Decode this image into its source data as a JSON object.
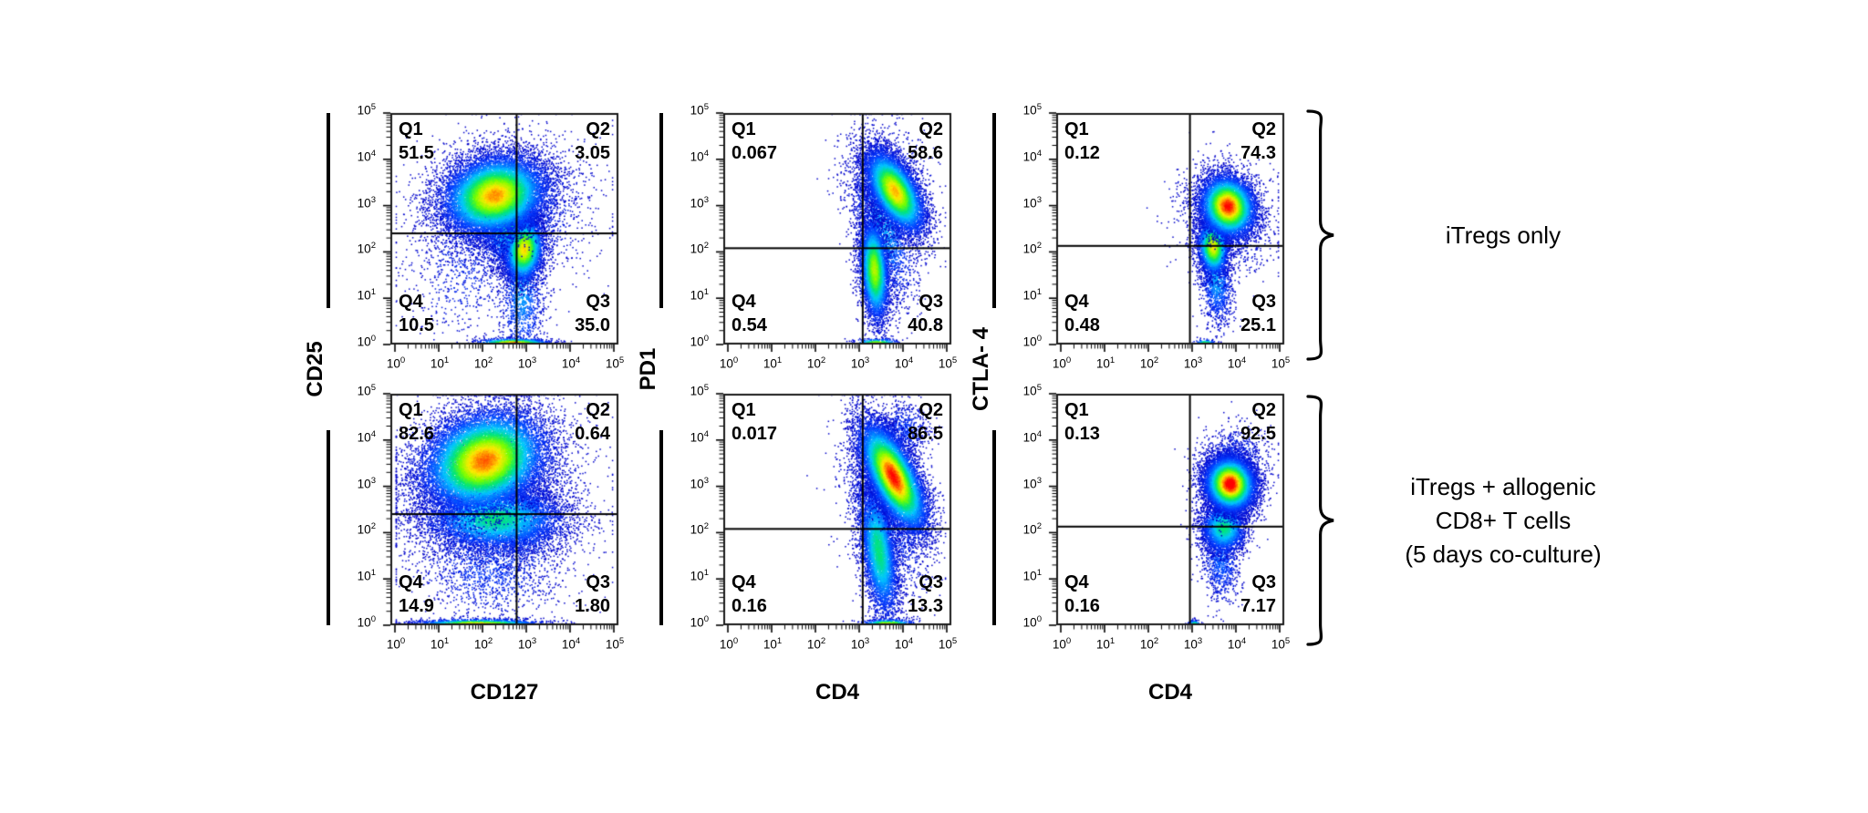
{
  "figure": {
    "title": "",
    "rows": [
      {
        "label_lines": [
          "iTregs only"
        ]
      },
      {
        "label_lines": [
          "iTregs + allogenic",
          "CD8+ T cells",
          "(5 days co-culture)"
        ]
      }
    ],
    "columns": [
      {
        "y_label": "CD25",
        "x_label": "CD127"
      },
      {
        "y_label": "PD1",
        "x_label": "CD4"
      },
      {
        "y_label": "CTLA- 4",
        "x_label": "CD4"
      }
    ],
    "tick_base": "10",
    "tick_exponents": [
      "0",
      "1",
      "2",
      "3",
      "4",
      "5"
    ]
  },
  "chart_data": {
    "type": "scatter",
    "subtype": "flow-cytometry-pseudocolor-dot-plot",
    "x_scale": "log10",
    "y_scale": "log10",
    "x_range_decades": [
      0,
      5
    ],
    "y_range_decades": [
      0,
      5
    ],
    "grid": false,
    "legend": false,
    "panels": [
      {
        "id": "cd25-vs-cd127-itregs-only",
        "row": 0,
        "col": 0,
        "xlabel": "CD127",
        "ylabel": "CD25",
        "condition": "iTregs only",
        "quadrants": {
          "q1": {
            "label": "Q1",
            "value": "51.5"
          },
          "q2": {
            "label": "Q2",
            "value": "3.05"
          },
          "q3": {
            "label": "Q3",
            "value": "35.0"
          },
          "q4": {
            "label": "Q4",
            "value": "10.5"
          }
        },
        "gate": {
          "x_log": 2.78,
          "y_log": 2.4
        },
        "populations": [
          {
            "n": 2600,
            "cx": 2.55,
            "cy": 2.9,
            "sx": 0.95,
            "sy": 0.75,
            "rot": 10,
            "core": 0.18
          },
          {
            "n": 600,
            "cx": 1.6,
            "cy": 1.6,
            "sx": 0.7,
            "sy": 0.8,
            "rot": 0,
            "core": 0.1
          },
          {
            "n": 1500,
            "cx": 2.9,
            "cy": 1.2,
            "sx": 0.25,
            "sy": 0.8,
            "rot": 0,
            "core": 0.3
          },
          {
            "n": 3000,
            "cx": 2.62,
            "cy": 2.55,
            "sx": 0.32,
            "sy": 0.45,
            "rot": 0,
            "core": 0.45
          },
          {
            "n": 4200,
            "cx": 2.95,
            "cy": 2.05,
            "sx": 0.22,
            "sy": 0.35,
            "rot": -8,
            "core": 0.82
          },
          {
            "n": 13000,
            "cx": 2.28,
            "cy": 3.22,
            "sx": 0.6,
            "sy": 0.42,
            "rot": 12,
            "core": 0.88
          },
          {
            "n": 1100,
            "cx": 2.7,
            "cy": 0.03,
            "sx": 0.42,
            "sy": 0.05,
            "rot": 0,
            "core": 0.95
          }
        ]
      },
      {
        "id": "pd1-vs-cd4-itregs-only",
        "row": 0,
        "col": 1,
        "xlabel": "CD4",
        "ylabel": "PD1",
        "condition": "iTregs only",
        "quadrants": {
          "q1": {
            "label": "Q1",
            "value": "0.067"
          },
          "q2": {
            "label": "Q2",
            "value": "58.6"
          },
          "q3": {
            "label": "Q3",
            "value": "40.8"
          },
          "q4": {
            "label": "Q4",
            "value": "0.54"
          }
        },
        "gate": {
          "x_log": 3.08,
          "y_log": 2.08
        },
        "populations": [
          {
            "n": 900,
            "cx": 3.6,
            "cy": 3.6,
            "sx": 0.5,
            "sy": 0.6,
            "rot": 20,
            "core": 0.12
          },
          {
            "n": 2400,
            "cx": 3.55,
            "cy": 2.5,
            "sx": 0.3,
            "sy": 0.8,
            "rot": 15,
            "core": 0.3
          },
          {
            "n": 5200,
            "cx": 3.35,
            "cy": 1.6,
            "sx": 0.16,
            "sy": 0.55,
            "rot": 4,
            "core": 0.72
          },
          {
            "n": 8500,
            "cx": 3.82,
            "cy": 3.3,
            "sx": 0.25,
            "sy": 0.5,
            "rot": 32,
            "core": 0.85
          },
          {
            "n": 350,
            "cx": 3.4,
            "cy": 0.03,
            "sx": 0.25,
            "sy": 0.05,
            "rot": 0,
            "core": 0.75
          }
        ]
      },
      {
        "id": "ctla4-vs-cd4-itregs-only",
        "row": 0,
        "col": 2,
        "xlabel": "CD4",
        "ylabel": "CTLA- 4",
        "condition": "iTregs only",
        "quadrants": {
          "q1": {
            "label": "Q1",
            "value": "0.12"
          },
          "q2": {
            "label": "Q2",
            "value": "74.3"
          },
          "q3": {
            "label": "Q3",
            "value": "25.1"
          },
          "q4": {
            "label": "Q4",
            "value": "0.48"
          }
        },
        "gate": {
          "x_log": 2.95,
          "y_log": 2.13
        },
        "populations": [
          {
            "n": 1300,
            "cx": 3.75,
            "cy": 2.7,
            "sx": 0.5,
            "sy": 0.6,
            "rot": 25,
            "core": 0.15
          },
          {
            "n": 1400,
            "cx": 3.55,
            "cy": 1.4,
            "sx": 0.18,
            "sy": 0.5,
            "rot": 5,
            "core": 0.3
          },
          {
            "n": 3200,
            "cx": 3.48,
            "cy": 2.1,
            "sx": 0.17,
            "sy": 0.3,
            "rot": 5,
            "core": 0.8
          },
          {
            "n": 8000,
            "cx": 3.82,
            "cy": 2.98,
            "sx": 0.3,
            "sy": 0.34,
            "rot": 33,
            "core": 1.0
          },
          {
            "n": 150,
            "cx": 3.3,
            "cy": 0.03,
            "sx": 0.12,
            "sy": 0.04,
            "rot": 0,
            "core": 0.6
          }
        ]
      },
      {
        "id": "cd25-vs-cd127-coculture",
        "row": 1,
        "col": 0,
        "xlabel": "CD127",
        "ylabel": "CD25",
        "condition": "iTregs + allogenic CD8+ T cells (5 days co-culture)",
        "quadrants": {
          "q1": {
            "label": "Q1",
            "value": "82.6"
          },
          "q2": {
            "label": "Q2",
            "value": "0.64"
          },
          "q3": {
            "label": "Q3",
            "value": "1.80"
          },
          "q4": {
            "label": "Q4",
            "value": "14.9"
          }
        },
        "gate": {
          "x_log": 2.78,
          "y_log": 2.4
        },
        "populations": [
          {
            "n": 3000,
            "cx": 2.1,
            "cy": 2.95,
            "sx": 1.05,
            "sy": 0.85,
            "rot": 10,
            "core": 0.2
          },
          {
            "n": 1500,
            "cx": 2.2,
            "cy": 1.3,
            "sx": 0.85,
            "sy": 0.6,
            "rot": 0,
            "core": 0.15
          },
          {
            "n": 800,
            "cx": 3.0,
            "cy": 2.2,
            "sx": 0.35,
            "sy": 0.5,
            "rot": 0,
            "core": 0.25
          },
          {
            "n": 6500,
            "cx": 2.3,
            "cy": 2.3,
            "sx": 0.8,
            "sy": 0.35,
            "rot": 0,
            "core": 0.5
          },
          {
            "n": 15000,
            "cx": 2.05,
            "cy": 3.55,
            "sx": 0.72,
            "sy": 0.52,
            "rot": 18,
            "core": 0.92
          },
          {
            "n": 2000,
            "cx": 1.9,
            "cy": 0.03,
            "sx": 0.72,
            "sy": 0.05,
            "rot": 0,
            "core": 0.85
          }
        ]
      },
      {
        "id": "pd1-vs-cd4-coculture",
        "row": 1,
        "col": 1,
        "xlabel": "CD4",
        "ylabel": "PD1",
        "condition": "iTregs + allogenic CD8+ T cells (5 days co-culture)",
        "quadrants": {
          "q1": {
            "label": "Q1",
            "value": "0.017"
          },
          "q2": {
            "label": "Q2",
            "value": "86.5"
          },
          "q3": {
            "label": "Q3",
            "value": "13.3"
          },
          "q4": {
            "label": "Q4",
            "value": "0.16"
          }
        },
        "gate": {
          "x_log": 3.08,
          "y_log": 2.08
        },
        "populations": [
          {
            "n": 700,
            "cx": 4.0,
            "cy": 4.2,
            "sx": 0.3,
            "sy": 0.3,
            "rot": 20,
            "core": 0.15
          },
          {
            "n": 2200,
            "cx": 3.6,
            "cy": 2.5,
            "sx": 0.4,
            "sy": 0.9,
            "rot": 15,
            "core": 0.22
          },
          {
            "n": 5000,
            "cx": 3.45,
            "cy": 1.6,
            "sx": 0.2,
            "sy": 0.75,
            "rot": 8,
            "core": 0.5
          },
          {
            "n": 12000,
            "cx": 3.78,
            "cy": 3.2,
            "sx": 0.26,
            "sy": 0.65,
            "rot": 28,
            "core": 1.0
          },
          {
            "n": 600,
            "cx": 3.65,
            "cy": 0.03,
            "sx": 0.3,
            "sy": 0.05,
            "rot": 0,
            "core": 0.8
          }
        ]
      },
      {
        "id": "ctla4-vs-cd4-coculture",
        "row": 1,
        "col": 2,
        "xlabel": "CD4",
        "ylabel": "CTLA- 4",
        "condition": "iTregs + allogenic CD8+ T cells (5 days co-culture)",
        "quadrants": {
          "q1": {
            "label": "Q1",
            "value": "0.13"
          },
          "q2": {
            "label": "Q2",
            "value": "92.5"
          },
          "q3": {
            "label": "Q3",
            "value": "7.17"
          },
          "q4": {
            "label": "Q4",
            "value": "0.16"
          }
        },
        "gate": {
          "x_log": 2.95,
          "y_log": 2.13
        },
        "populations": [
          {
            "n": 800,
            "cx": 3.95,
            "cy": 3.6,
            "sx": 0.4,
            "sy": 0.35,
            "rot": 25,
            "core": 0.15
          },
          {
            "n": 900,
            "cx": 3.65,
            "cy": 1.4,
            "sx": 0.22,
            "sy": 0.45,
            "rot": 5,
            "core": 0.2
          },
          {
            "n": 3200,
            "cx": 3.72,
            "cy": 2.1,
            "sx": 0.26,
            "sy": 0.28,
            "rot": 10,
            "core": 0.5
          },
          {
            "n": 11000,
            "cx": 3.87,
            "cy": 3.05,
            "sx": 0.28,
            "sy": 0.3,
            "rot": 30,
            "core": 1.05
          },
          {
            "n": 120,
            "cx": 3.05,
            "cy": 0.03,
            "sx": 0.08,
            "sy": 0.04,
            "rot": 0,
            "core": 0.55
          }
        ]
      }
    ]
  }
}
